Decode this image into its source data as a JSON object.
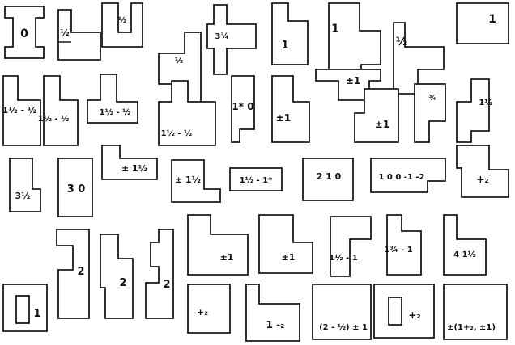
{
  "figure": {
    "description_hidden": false,
    "ink_color": "#1a1a1a",
    "background": "#ffffff"
  },
  "pieces": [
    {
      "label": "0"
    },
    {
      "label": "½"
    },
    {
      "label": "½"
    },
    {
      "label": "½"
    },
    {
      "label": "3¾"
    },
    {
      "label": "1"
    },
    {
      "label": "1"
    },
    {
      "label": "½"
    },
    {
      "label": "1"
    },
    {
      "label": "1½ - ½"
    },
    {
      "label": "1½ - ½"
    },
    {
      "label": "1½ - ½"
    },
    {
      "label": "1½ - ½"
    },
    {
      "label": "1* 0"
    },
    {
      "label": "±1"
    },
    {
      "label": "±1"
    },
    {
      "label": "±1"
    },
    {
      "label": "¾"
    },
    {
      "label": "1½"
    },
    {
      "label": "3½"
    },
    {
      "label": "3 0"
    },
    {
      "label": "± 1½"
    },
    {
      "label": "± 1½"
    },
    {
      "label": "1½ - 1*"
    },
    {
      "label": "2 1 0"
    },
    {
      "label": "1 0 0 -1 -2"
    },
    {
      "label": "+₂"
    },
    {
      "label": "2"
    },
    {
      "label": "2"
    },
    {
      "label": "2"
    },
    {
      "label": "±1"
    },
    {
      "label": "±1"
    },
    {
      "label": "1½ - 1"
    },
    {
      "label": "1¾ - 1"
    },
    {
      "label": "4 1½"
    },
    {
      "label": "1"
    },
    {
      "label": "+₂"
    },
    {
      "label": "1 -₂"
    },
    {
      "label": "(2 - ½) ± 1"
    },
    {
      "label": "+₂"
    },
    {
      "label": "±(1+₂, ±1)"
    }
  ]
}
